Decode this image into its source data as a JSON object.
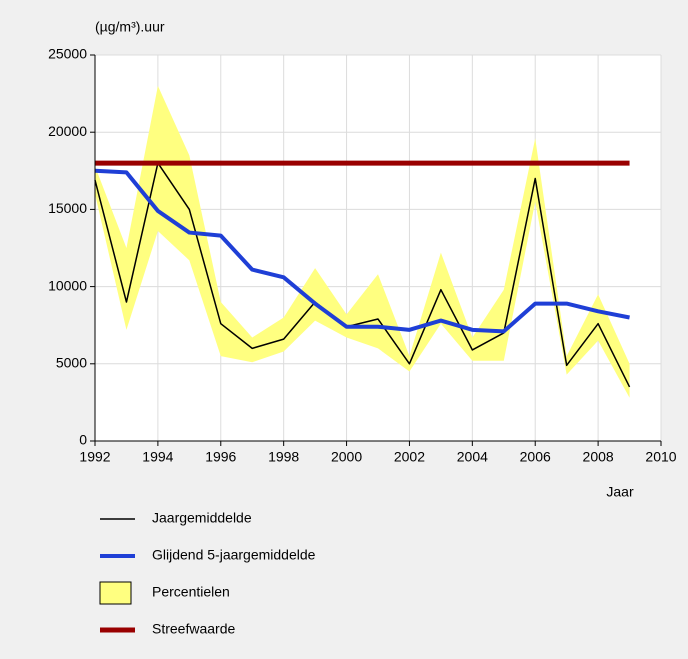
{
  "chart_data": {
    "type": "line",
    "y_label": "(µg/m³).uur",
    "x_label": "Jaar",
    "xlim": [
      1992,
      2010
    ],
    "xticks": [
      1992,
      1994,
      1996,
      1998,
      2000,
      2002,
      2004,
      2006,
      2008,
      2010
    ],
    "ylim": [
      0,
      25000
    ],
    "yticks": [
      0,
      5000,
      10000,
      15000,
      20000,
      25000
    ],
    "grid": true,
    "x": [
      1992,
      1993,
      1994,
      1995,
      1996,
      1997,
      1998,
      1999,
      2000,
      2001,
      2002,
      2003,
      2004,
      2005,
      2006,
      2007,
      2008,
      2009
    ],
    "series": [
      {
        "name": "Jaargemiddelde",
        "color": "#000000",
        "values": [
          16900,
          9000,
          18000,
          15000,
          7600,
          6000,
          6600,
          9000,
          7400,
          7900,
          5000,
          9800,
          5900,
          7000,
          17000,
          4900,
          7600,
          3500
        ]
      },
      {
        "name": "Glijdend 5-jaargemiddelde",
        "color": "#1f3fd6",
        "values": [
          17500,
          17400,
          14900,
          13500,
          13300,
          11100,
          10600,
          8900,
          7400,
          7400,
          7200,
          7800,
          7200,
          7100,
          8900,
          8900,
          8400,
          8000
        ]
      },
      {
        "name": "Percentielen",
        "color": "#ffff80",
        "style": "band",
        "upper": [
          17800,
          12500,
          23000,
          18500,
          9000,
          6700,
          8000,
          11200,
          8200,
          10800,
          5500,
          12200,
          6700,
          9800,
          19600,
          5500,
          9500,
          5000
        ],
        "lower": [
          16000,
          7200,
          13600,
          11700,
          5500,
          5100,
          5800,
          7800,
          6700,
          6000,
          4500,
          7600,
          5200,
          5200,
          15500,
          4300,
          6500,
          2800
        ]
      },
      {
        "name": "Streefwaarde",
        "color": "#990000",
        "x": [
          1992,
          2009
        ],
        "values": [
          18000,
          18000
        ]
      }
    ]
  }
}
